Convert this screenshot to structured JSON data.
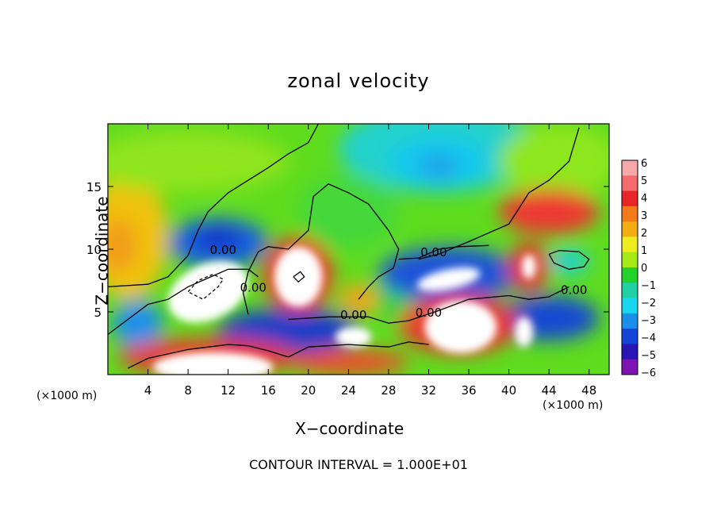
{
  "chart_data": {
    "type": "heatmap",
    "title": "zonal velocity",
    "xlabel": "X−coordinate",
    "ylabel": "Z−coordinate",
    "x_unit_label": "(×1000 m)",
    "x_unit_label_right": "(×1000 m)",
    "footer": "CONTOUR INTERVAL = 1.000E+01",
    "xlim": [
      0,
      50
    ],
    "ylim": [
      0,
      20
    ],
    "x_ticks": [
      4,
      8,
      12,
      16,
      20,
      24,
      28,
      32,
      36,
      40,
      44,
      48
    ],
    "y_ticks": [
      5,
      10,
      15
    ],
    "colorbar": {
      "range": [
        -6,
        6
      ],
      "labels": [
        "6",
        "5",
        "4",
        "3",
        "2",
        "1",
        "0",
        "−1",
        "−2",
        "−3",
        "−4",
        "−5",
        "−6"
      ],
      "colors_top_to_bottom": [
        "#f7a8a8",
        "#f56a6a",
        "#e8262a",
        "#f27a1a",
        "#f3ad12",
        "#eded1e",
        "#a5ea14",
        "#22d22a",
        "#21d1a6",
        "#16d6f0",
        "#1a8fea",
        "#1244d8",
        "#2a14b4",
        "#7d13b0"
      ]
    },
    "contour_labels": [
      {
        "text": "0.00",
        "x": 11.5,
        "z": 10.0
      },
      {
        "text": "0.00",
        "x": 14.5,
        "z": 7.0
      },
      {
        "text": "0.00",
        "x": 24.5,
        "z": 4.8
      },
      {
        "text": "0.00",
        "x": 32.5,
        "z": 9.8
      },
      {
        "text": "0.00",
        "x": 32.0,
        "z": 5.0
      },
      {
        "text": "0.00",
        "x": 46.5,
        "z": 6.8
      }
    ],
    "features": [
      {
        "name": "upper-left-warm",
        "x": 1,
        "z": 10.5,
        "value": 3
      },
      {
        "name": "upper-right-cyan",
        "x": 33,
        "z": 17,
        "value": -3
      },
      {
        "name": "blue-band-left",
        "x": 11,
        "z": 10.5,
        "value": -4
      },
      {
        "name": "saturated-low-left",
        "x": 11,
        "z": 7,
        "value": -6
      },
      {
        "name": "saturated-high-center",
        "x": 19,
        "z": 7.5,
        "value": 6
      },
      {
        "name": "saturated-low-center-right",
        "x": 34,
        "z": 7.5,
        "value": -6
      },
      {
        "name": "saturated-high-bottom-right",
        "x": 35,
        "z": 4,
        "value": 6
      },
      {
        "name": "red-upper-right",
        "x": 44,
        "z": 12.8,
        "value": 5
      },
      {
        "name": "red-right",
        "x": 42,
        "z": 8.5,
        "value": 5
      },
      {
        "name": "cyan-small-right",
        "x": 45.5,
        "z": 9,
        "value": -2
      },
      {
        "name": "saturated-bottom-left",
        "x": 10,
        "z": 1,
        "value": 6
      },
      {
        "name": "saturated-small-center",
        "x": 24.5,
        "z": 3,
        "value": -6
      }
    ]
  }
}
